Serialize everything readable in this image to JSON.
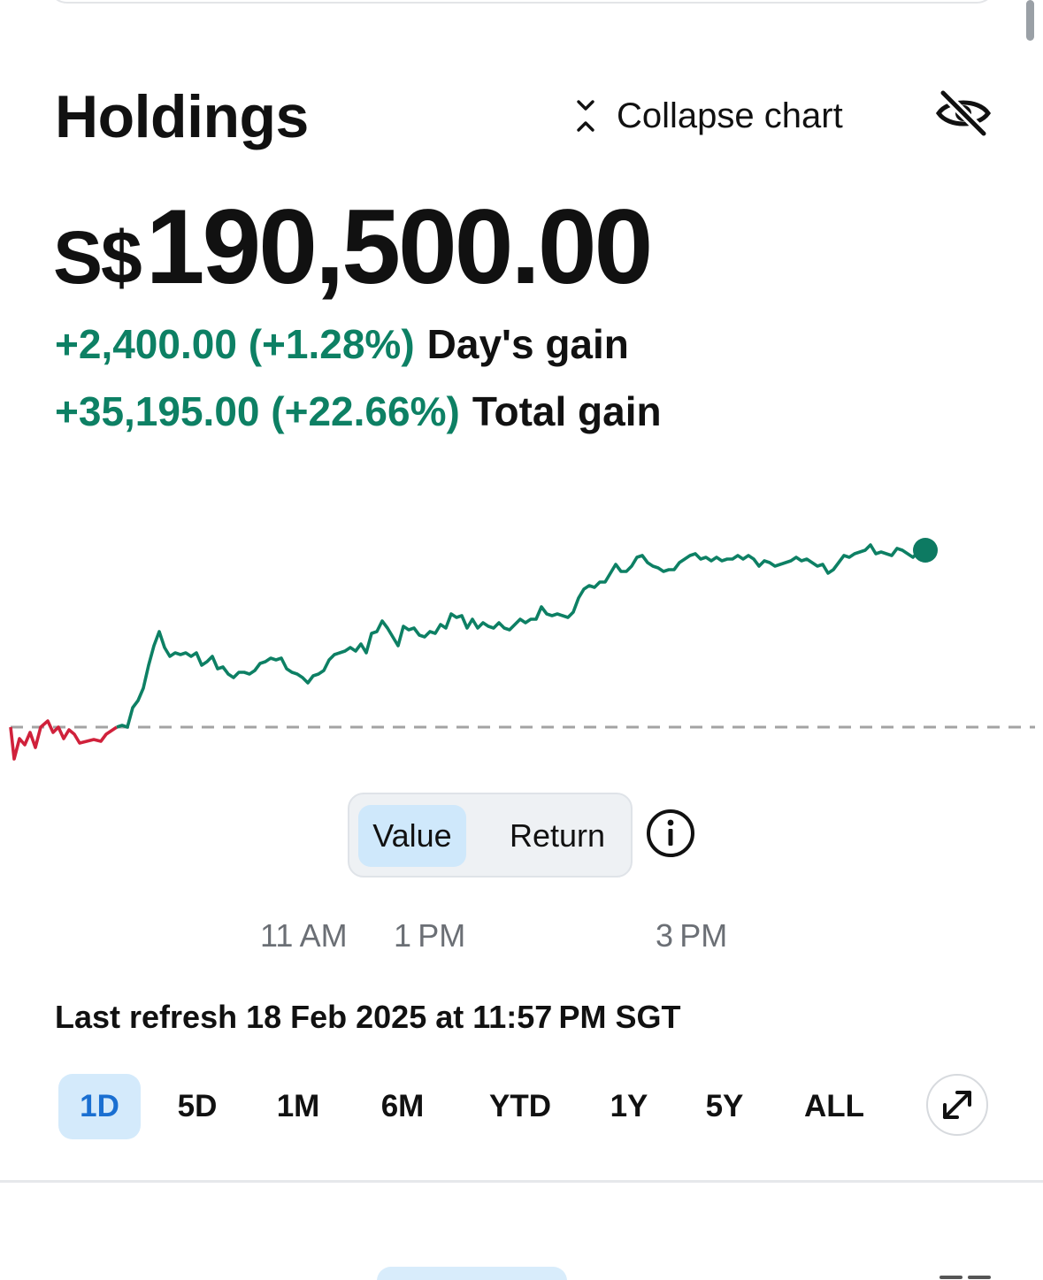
{
  "header": {
    "title": "Holdings",
    "collapse_label": "Collapse chart"
  },
  "portfolio": {
    "currency": "S$",
    "amount": "190,500.00",
    "day_gain_value": "+2,400.00 (+1.28%)",
    "day_gain_label": "Day's gain",
    "total_gain_value": "+35,195.00 (+22.66%)",
    "total_gain_label": "Total gain"
  },
  "colors": {
    "gain": "#0d8064",
    "loss": "#d0213b",
    "baseline": "#9c9c9c",
    "active_bg": "#d4eafb",
    "active_text": "#1a6fd1"
  },
  "chart_data": {
    "type": "line",
    "x": [
      "11 AM",
      "1 PM",
      "3 PM"
    ],
    "baseline_value": 188100.0,
    "last_value": 190500.0,
    "grid": false,
    "baseline_style": "dashed"
  },
  "toggle": {
    "options": [
      "Value",
      "Return"
    ],
    "selected": "Value",
    "info_icon": "info-icon"
  },
  "time_axis": [
    "11 AM",
    "1 PM",
    "3 PM"
  ],
  "last_refresh": "Last refresh 18 Feb 2025 at 11:57 PM SGT",
  "ranges": {
    "items": [
      "1D",
      "5D",
      "1M",
      "6M",
      "YTD",
      "1Y",
      "5Y",
      "ALL"
    ],
    "selected": "1D",
    "expand_icon": "expand-icon"
  }
}
